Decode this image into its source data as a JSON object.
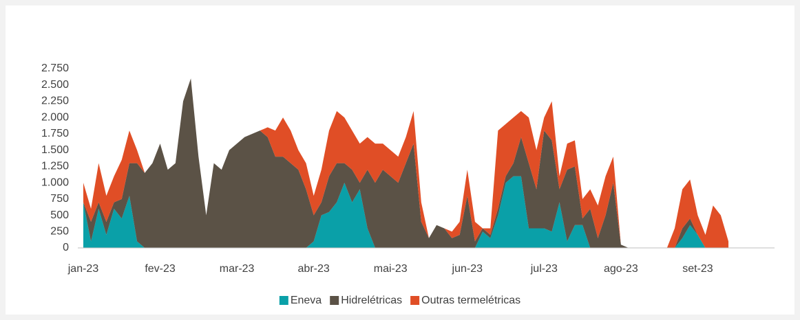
{
  "chart_data": {
    "type": "stacked_area",
    "categories": [
      "jan-23",
      null,
      null,
      null,
      null,
      null,
      null,
      null,
      null,
      null,
      "fev-23",
      null,
      null,
      null,
      null,
      null,
      null,
      null,
      null,
      null,
      "mar-23",
      null,
      null,
      null,
      null,
      null,
      null,
      null,
      null,
      null,
      "abr-23",
      null,
      null,
      null,
      null,
      null,
      null,
      null,
      null,
      null,
      "mai-23",
      null,
      null,
      null,
      null,
      null,
      null,
      null,
      null,
      null,
      "jun-23",
      null,
      null,
      null,
      null,
      null,
      null,
      null,
      null,
      null,
      "jul-23",
      null,
      null,
      null,
      null,
      null,
      null,
      null,
      null,
      null,
      "ago-23",
      null,
      null,
      null,
      null,
      null,
      null,
      null,
      null,
      null,
      "set-23",
      null,
      null,
      null,
      null,
      null,
      null,
      null,
      null,
      null
    ],
    "series": [
      {
        "name": "Eneva",
        "color": "#0aa0a8",
        "values": [
          700,
          100,
          600,
          200,
          600,
          450,
          800,
          100,
          0,
          0,
          0,
          0,
          0,
          0,
          0,
          0,
          0,
          0,
          0,
          0,
          0,
          0,
          0,
          0,
          0,
          0,
          0,
          0,
          0,
          0,
          100,
          500,
          550,
          700,
          1000,
          700,
          900,
          300,
          0,
          0,
          0,
          0,
          0,
          0,
          0,
          0,
          0,
          0,
          0,
          0,
          0,
          0,
          250,
          150,
          500,
          1000,
          1100,
          1100,
          300,
          300,
          300,
          250,
          700,
          100,
          350,
          350,
          0,
          0,
          0,
          0,
          0,
          0,
          0,
          0,
          0,
          0,
          0,
          0,
          150,
          350,
          200,
          0,
          0,
          0,
          0,
          null,
          null,
          null,
          null,
          null
        ]
      },
      {
        "name": "Hidrelétricas",
        "color": "#5b5246",
        "values": [
          0,
          300,
          100,
          200,
          100,
          300,
          500,
          1200,
          1150,
          1300,
          1600,
          1200,
          1300,
          2250,
          2600,
          1400,
          500,
          1300,
          1200,
          1500,
          1600,
          1700,
          1750,
          1800,
          1700,
          1400,
          1400,
          1300,
          1200,
          900,
          400,
          200,
          550,
          600,
          300,
          500,
          100,
          900,
          1000,
          1200,
          1100,
          1000,
          1300,
          1600,
          400,
          150,
          350,
          300,
          150,
          200,
          800,
          100,
          50,
          50,
          100,
          100,
          200,
          600,
          1000,
          600,
          1500,
          1400,
          200,
          1100,
          900,
          100,
          600,
          150,
          500,
          1000,
          50,
          0,
          0,
          0,
          0,
          0,
          0,
          0,
          150,
          100,
          0,
          0,
          0,
          0,
          0,
          null,
          null,
          null,
          null,
          null
        ]
      },
      {
        "name": "Outras termelétricas",
        "color": "#e04e26",
        "values": [
          300,
          200,
          600,
          400,
          400,
          600,
          500,
          200,
          0,
          0,
          0,
          0,
          0,
          0,
          0,
          0,
          0,
          0,
          0,
          0,
          0,
          0,
          0,
          0,
          150,
          400,
          600,
          500,
          300,
          400,
          300,
          500,
          700,
          800,
          700,
          600,
          600,
          500,
          600,
          400,
          400,
          400,
          400,
          500,
          300,
          0,
          0,
          0,
          100,
          200,
          400,
          300,
          0,
          100,
          1200,
          800,
          700,
          400,
          700,
          600,
          200,
          600,
          200,
          400,
          400,
          300,
          300,
          500,
          600,
          400,
          0,
          0,
          0,
          0,
          0,
          0,
          0,
          300,
          600,
          600,
          300,
          200,
          650,
          500,
          100,
          null,
          null,
          null,
          null,
          null
        ]
      }
    ],
    "ylim": [
      0,
      2750
    ],
    "yticks": [
      0,
      250,
      500,
      750,
      {
        "value": 1000,
        "label": "1.000"
      },
      {
        "value": 1250,
        "label": "1.250"
      },
      {
        "value": 1500,
        "label": "1.500"
      },
      {
        "value": 1750,
        "label": "1.750"
      },
      {
        "value": 2000,
        "label": "2.000"
      },
      {
        "value": 2250,
        "label": "2.250"
      },
      {
        "value": 2500,
        "label": "2.500"
      },
      {
        "value": 2750,
        "label": "2.750"
      }
    ],
    "legend": "bottom"
  }
}
